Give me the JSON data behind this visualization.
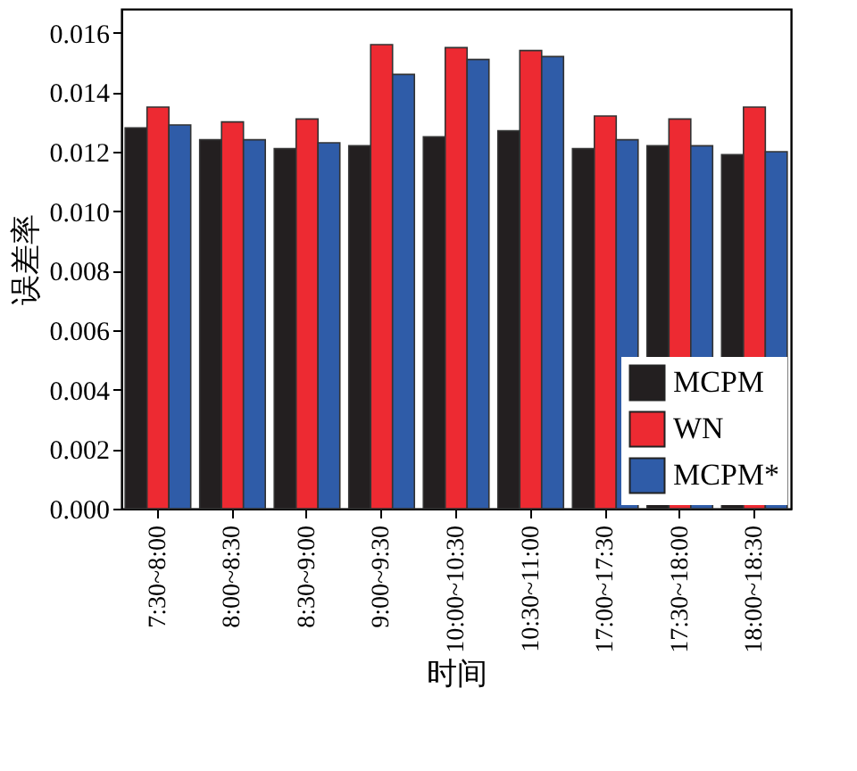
{
  "chart_data": {
    "type": "bar",
    "xlabel": "时间",
    "ylabel": "误差率",
    "categories": [
      "7:30~8:00",
      "8:00~8:30",
      "8:30~9:00",
      "9:00~9:30",
      "10:00~10:30",
      "10:30~11:00",
      "17:00~17:30",
      "17:30~18:00",
      "18:00~18:30"
    ],
    "series": [
      {
        "name": "MCPM",
        "color": "#231f20",
        "values": [
          0.0128,
          0.0124,
          0.0121,
          0.0122,
          0.0125,
          0.0127,
          0.0121,
          0.0122,
          0.0119
        ]
      },
      {
        "name": "WN",
        "color": "#ed2a32",
        "values": [
          0.0135,
          0.013,
          0.0131,
          0.0156,
          0.0155,
          0.0154,
          0.0132,
          0.0131,
          0.0135
        ]
      },
      {
        "name": "MCPM*",
        "color": "#2f5ca8",
        "values": [
          0.0129,
          0.0124,
          0.0123,
          0.0146,
          0.0151,
          0.0152,
          0.0124,
          0.0122,
          0.012
        ]
      }
    ],
    "ylim": [
      0,
      0.0168
    ],
    "yticks": [
      {
        "value": 0,
        "label": "0.000"
      },
      {
        "value": 0.002,
        "label": "0.002"
      },
      {
        "value": 0.004,
        "label": "0.004"
      },
      {
        "value": 0.006,
        "label": "0.006"
      },
      {
        "value": 0.008,
        "label": "0.008"
      },
      {
        "value": 0.01,
        "label": "0.010"
      },
      {
        "value": 0.012,
        "label": "0.012"
      },
      {
        "value": 0.014,
        "label": "0.014"
      },
      {
        "value": 0.016,
        "label": "0.016"
      }
    ],
    "grid": false,
    "legend": "bottom right"
  }
}
